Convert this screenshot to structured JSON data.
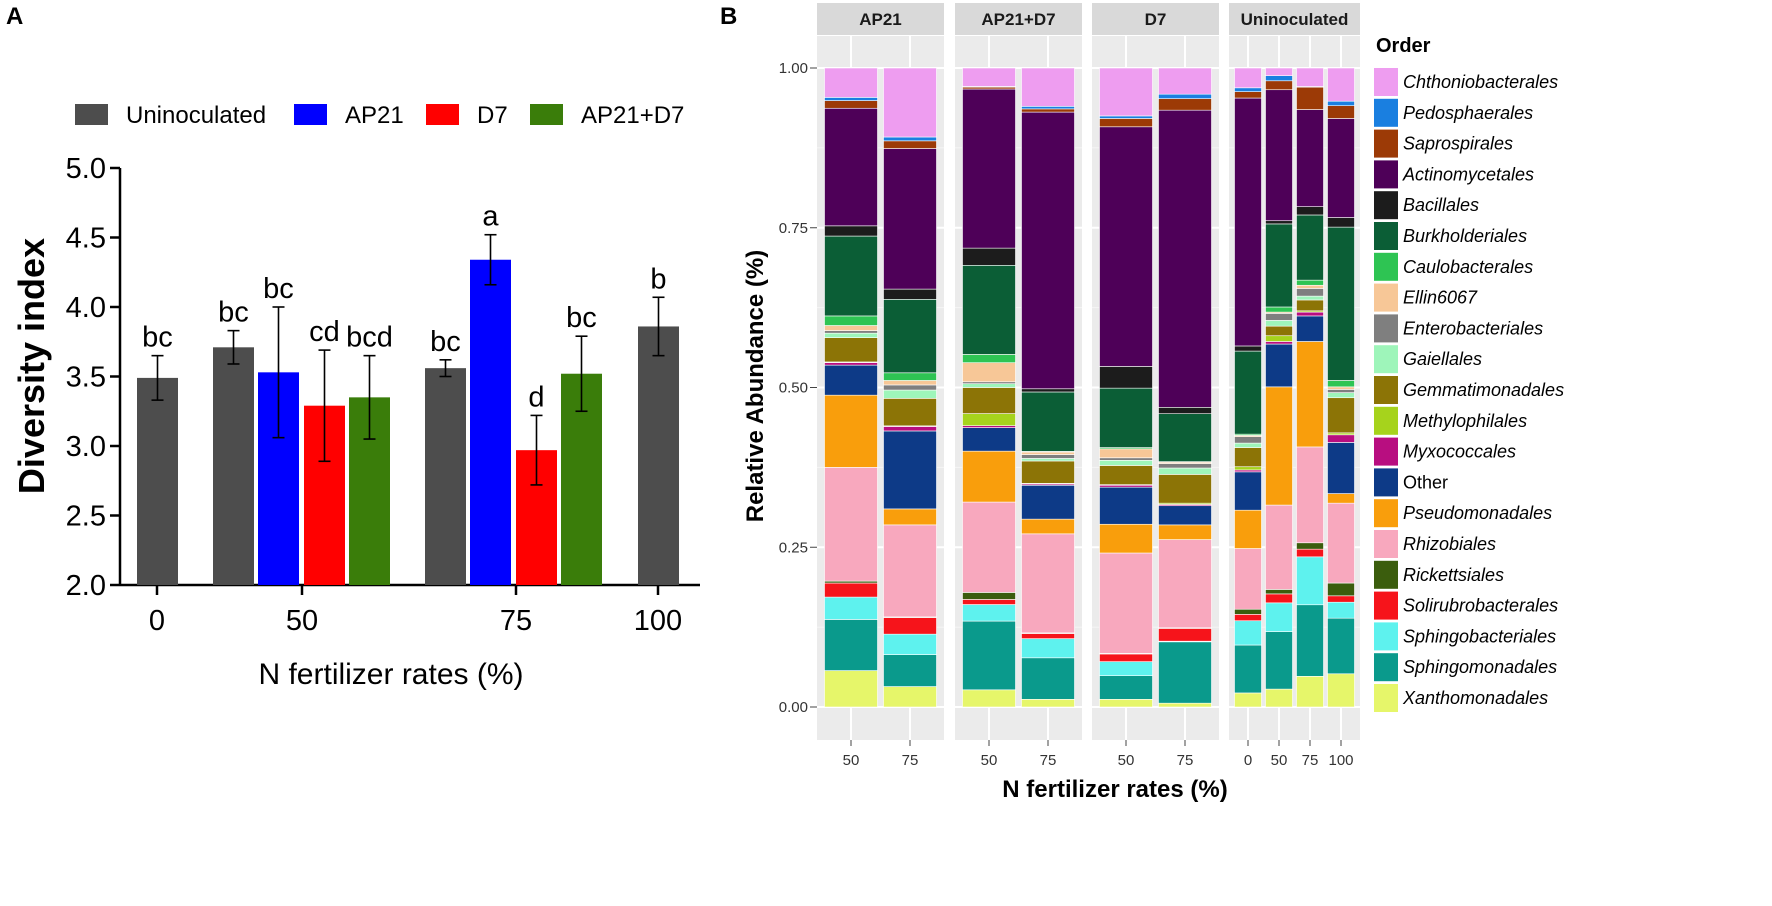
{
  "chart_data": [
    {
      "panel": "A",
      "type": "bar",
      "xlabel": "N fertilizer rates (%)",
      "ylabel": "Diversity index",
      "ylim": [
        2.0,
        5.0
      ],
      "yticks": [
        "2.0",
        "2.5",
        "3.0",
        "3.5",
        "4.0",
        "4.5",
        "5.0"
      ],
      "categories": [
        "0",
        "50",
        "75",
        "100"
      ],
      "legend": [
        {
          "name": "Uninoculated",
          "color": "#4d4d4d"
        },
        {
          "name": "AP21",
          "color": "#0000ff"
        },
        {
          "name": "D7",
          "color": "#ff0000"
        },
        {
          "name": "AP21+D7",
          "color": "#3a7d0a"
        }
      ],
      "bars": [
        {
          "category": "0",
          "series": "Uninoculated",
          "value": 3.49,
          "err": 0.16,
          "label": "bc"
        },
        {
          "category": "50",
          "series": "Uninoculated",
          "value": 3.71,
          "err": 0.12,
          "label": "bc"
        },
        {
          "category": "50",
          "series": "AP21",
          "value": 3.53,
          "err": 0.47,
          "label": "bc"
        },
        {
          "category": "50",
          "series": "D7",
          "value": 3.29,
          "err": 0.4,
          "label": "cd"
        },
        {
          "category": "50",
          "series": "AP21+D7",
          "value": 3.35,
          "err": 0.3,
          "label": "bcd"
        },
        {
          "category": "75",
          "series": "Uninoculated",
          "value": 3.56,
          "err": 0.06,
          "label": "bc"
        },
        {
          "category": "75",
          "series": "AP21",
          "value": 4.34,
          "err": 0.18,
          "label": "a"
        },
        {
          "category": "75",
          "series": "D7",
          "value": 2.97,
          "err": 0.25,
          "label": "d"
        },
        {
          "category": "75",
          "series": "AP21+D7",
          "value": 3.52,
          "err": 0.27,
          "label": "bc"
        },
        {
          "category": "100",
          "series": "Uninoculated",
          "value": 3.86,
          "err": 0.21,
          "label": "b"
        }
      ]
    },
    {
      "panel": "B",
      "type": "bar",
      "stacked": true,
      "xlabel": "N fertilizer rates (%)",
      "ylabel": "Relative Abundance (%)",
      "ylim": [
        0,
        1
      ],
      "yticks": [
        "0.00",
        "0.25",
        "0.50",
        "0.75",
        "1.00"
      ],
      "legend_title": "Order",
      "orders": [
        {
          "name": "Chthoniobacterales",
          "color": "#ee9df0"
        },
        {
          "name": "Pedosphaerales",
          "color": "#1a7fe0"
        },
        {
          "name": "Saprospirales",
          "color": "#9c3a06"
        },
        {
          "name": "Actinomycetales",
          "color": "#4e0058"
        },
        {
          "name": "Bacillales",
          "color": "#1c1c1c"
        },
        {
          "name": "Burkholderiales",
          "color": "#0b5e36"
        },
        {
          "name": "Caulobacterales",
          "color": "#2ec453"
        },
        {
          "name": "Ellin6067",
          "color": "#f7c797"
        },
        {
          "name": "Enterobacteriales",
          "color": "#7f7f7f"
        },
        {
          "name": "Gaiellales",
          "color": "#9ef5ba"
        },
        {
          "name": "Gemmatimonadales",
          "color": "#8c7406"
        },
        {
          "name": "Methylophilales",
          "color": "#a6d31c"
        },
        {
          "name": "Myxococcales",
          "color": "#b80e80"
        },
        {
          "name": "Other",
          "color": "#0d3a87",
          "plain": true
        },
        {
          "name": "Pseudomonadales",
          "color": "#f99e0c"
        },
        {
          "name": "Rhizobiales",
          "color": "#f8a8be"
        },
        {
          "name": "Rickettsiales",
          "color": "#3b5d0d"
        },
        {
          "name": "Solirubrobacterales",
          "color": "#f6141b"
        },
        {
          "name": "Sphingobacteriales",
          "color": "#5ef2ee"
        },
        {
          "name": "Sphingomonadales",
          "color": "#0a9a8c"
        },
        {
          "name": "Xanthomonadales",
          "color": "#e6f66a"
        }
      ],
      "facets": [
        {
          "name": "AP21",
          "bars": [
            {
              "x": "50",
              "values": {
                "Xanthomonadales": 0.057,
                "Sphingomonadales": 0.08,
                "Sphingobacteriales": 0.035,
                "Solirubrobacterales": 0.022,
                "Rickettsiales": 0.003,
                "Rhizobiales": 0.178,
                "Pseudomonadales": 0.113,
                "Other": 0.047,
                "Myxococcales": 0.004,
                "Methylophilales": 0.001,
                "Gemmatimonadales": 0.038,
                "Gaiellales": 0.007,
                "Enterobacteriales": 0.004,
                "Ellin6067": 0.008,
                "Caulobacterales": 0.015,
                "Burkholderiales": 0.125,
                "Bacillales": 0.016,
                "Actinomycetales": 0.184,
                "Saprospirales": 0.012,
                "Pedosphaerales": 0.005,
                "Chthoniobacterales": 0.046
              }
            },
            {
              "x": "75",
              "values": {
                "Xanthomonadales": 0.032,
                "Sphingomonadales": 0.05,
                "Sphingobacteriales": 0.032,
                "Solirubrobacterales": 0.026,
                "Rickettsiales": 0.001,
                "Rhizobiales": 0.144,
                "Pseudomonadales": 0.025,
                "Other": 0.122,
                "Myxococcales": 0.007,
                "Methylophilales": 0.001,
                "Gemmatimonadales": 0.043,
                "Gaiellales": 0.013,
                "Enterobacteriales": 0.008,
                "Ellin6067": 0.007,
                "Caulobacterales": 0.012,
                "Burkholderiales": 0.115,
                "Bacillales": 0.016,
                "Actinomycetales": 0.22,
                "Saprospirales": 0.012,
                "Pedosphaerales": 0.006,
                "Chthoniobacterales": 0.108
              }
            }
          ]
        },
        {
          "name": "AP21+D7",
          "bars": [
            {
              "x": "50",
              "values": {
                "Xanthomonadales": 0.027,
                "Sphingomonadales": 0.108,
                "Sphingobacteriales": 0.026,
                "Solirubrobacterales": 0.008,
                "Rickettsiales": 0.011,
                "Rhizobiales": 0.142,
                "Pseudomonadales": 0.08,
                "Other": 0.037,
                "Myxococcales": 0.003,
                "Methylophilales": 0.019,
                "Gemmatimonadales": 0.041,
                "Gaiellales": 0.006,
                "Enterobacteriales": 0.003,
                "Ellin6067": 0.03,
                "Caulobacterales": 0.013,
                "Burkholderiales": 0.14,
                "Bacillales": 0.027,
                "Actinomycetales": 0.25,
                "Saprospirales": 0.003,
                "Pedosphaerales": 0.001,
                "Chthoniobacterales": 0.029
              }
            },
            {
              "x": "75",
              "values": {
                "Xanthomonadales": 0.012,
                "Sphingomonadales": 0.065,
                "Sphingobacteriales": 0.03,
                "Solirubrobacterales": 0.008,
                "Rickettsiales": 0.001,
                "Rhizobiales": 0.155,
                "Pseudomonadales": 0.023,
                "Other": 0.053,
                "Myxococcales": 0.002,
                "Methylophilales": 0.001,
                "Gemmatimonadales": 0.035,
                "Gaiellales": 0.004,
                "Enterobacteriales": 0.006,
                "Ellin6067": 0.004,
                "Caulobacterales": 0.001,
                "Burkholderiales": 0.093,
                "Bacillales": 0.005,
                "Actinomycetales": 0.433,
                "Saprospirales": 0.005,
                "Pedosphaerales": 0.004,
                "Chthoniobacterales": 0.06
              }
            }
          ]
        },
        {
          "name": "D7",
          "bars": [
            {
              "x": "50",
              "values": {
                "Xanthomonadales": 0.012,
                "Sphingomonadales": 0.037,
                "Sphingobacteriales": 0.022,
                "Solirubrobacterales": 0.012,
                "Rickettsiales": 0.001,
                "Rhizobiales": 0.157,
                "Pseudomonadales": 0.045,
                "Other": 0.058,
                "Myxococcales": 0.003,
                "Methylophilales": 0.001,
                "Gemmatimonadales": 0.03,
                "Gaiellales": 0.008,
                "Enterobacteriales": 0.004,
                "Ellin6067": 0.014,
                "Caulobacterales": 0.002,
                "Burkholderiales": 0.093,
                "Bacillales": 0.034,
                "Actinomycetales": 0.375,
                "Saprospirales": 0.013,
                "Pedosphaerales": 0.004,
                "Chthoniobacterales": 0.075
              }
            },
            {
              "x": "75",
              "values": {
                "Xanthomonadales": 0.006,
                "Sphingomonadales": 0.096,
                "Sphingobacteriales": 0.001,
                "Solirubrobacterales": 0.02,
                "Rickettsiales": 0.001,
                "Rhizobiales": 0.138,
                "Pseudomonadales": 0.023,
                "Other": 0.03,
                "Myxococcales": 0.002,
                "Methylophilales": 0.002,
                "Gemmatimonadales": 0.045,
                "Gaiellales": 0.01,
                "Enterobacteriales": 0.007,
                "Ellin6067": 0.002,
                "Caulobacterales": 0.001,
                "Burkholderiales": 0.075,
                "Bacillales": 0.01,
                "Actinomycetales": 0.465,
                "Saprospirales": 0.018,
                "Pedosphaerales": 0.007,
                "Chthoniobacterales": 0.041
              }
            }
          ]
        },
        {
          "name": "Uninoculated",
          "bars": [
            {
              "x": "0",
              "values": {
                "Xanthomonadales": 0.022,
                "Sphingomonadales": 0.075,
                "Sphingobacteriales": 0.038,
                "Solirubrobacterales": 0.01,
                "Rickettsiales": 0.008,
                "Rhizobiales": 0.095,
                "Pseudomonadales": 0.06,
                "Other": 0.06,
                "Myxococcales": 0.003,
                "Methylophilales": 0.005,
                "Gemmatimonadales": 0.03,
                "Gaiellales": 0.007,
                "Enterobacteriales": 0.01,
                "Ellin6067": 0.002,
                "Caulobacterales": 0.002,
                "Burkholderiales": 0.13,
                "Bacillales": 0.008,
                "Actinomycetales": 0.388,
                "Saprospirales": 0.01,
                "Pedosphaerales": 0.006,
                "Chthoniobacterales": 0.031
              }
            },
            {
              "x": "50",
              "values": {
                "Xanthomonadales": 0.028,
                "Sphingomonadales": 0.09,
                "Sphingobacteriales": 0.045,
                "Solirubrobacterales": 0.014,
                "Rickettsiales": 0.007,
                "Rhizobiales": 0.132,
                "Pseudomonadales": 0.185,
                "Other": 0.067,
                "Myxococcales": 0.004,
                "Methylophilales": 0.009,
                "Gemmatimonadales": 0.015,
                "Gaiellales": 0.009,
                "Enterobacteriales": 0.011,
                "Ellin6067": 0.002,
                "Caulobacterales": 0.008,
                "Burkholderiales": 0.13,
                "Bacillales": 0.005,
                "Actinomycetales": 0.205,
                "Saprospirales": 0.014,
                "Pedosphaerales": 0.008,
                "Chthoniobacterales": 0.012
              }
            },
            {
              "x": "75",
              "values": {
                "Xanthomonadales": 0.048,
                "Sphingomonadales": 0.112,
                "Sphingobacteriales": 0.075,
                "Solirubrobacterales": 0.012,
                "Rickettsiales": 0.01,
                "Rhizobiales": 0.15,
                "Pseudomonadales": 0.165,
                "Other": 0.04,
                "Myxococcales": 0.006,
                "Methylophilales": 0.002,
                "Gemmatimonadales": 0.017,
                "Gaiellales": 0.006,
                "Enterobacteriales": 0.012,
                "Ellin6067": 0.005,
                "Caulobacterales": 0.008,
                "Burkholderiales": 0.102,
                "Bacillales": 0.013,
                "Actinomycetales": 0.152,
                "Saprospirales": 0.035,
                "Pedosphaerales": 0.001,
                "Chthoniobacterales": 0.029
              }
            },
            {
              "x": "100",
              "values": {
                "Xanthomonadales": 0.052,
                "Sphingomonadales": 0.087,
                "Sphingobacteriales": 0.025,
                "Solirubrobacterales": 0.01,
                "Rickettsiales": 0.02,
                "Rhizobiales": 0.125,
                "Pseudomonadales": 0.015,
                "Other": 0.08,
                "Myxococcales": 0.012,
                "Methylophilales": 0.003,
                "Gemmatimonadales": 0.055,
                "Gaiellales": 0.008,
                "Enterobacteriales": 0.005,
                "Ellin6067": 0.004,
                "Caulobacterales": 0.01,
                "Burkholderiales": 0.24,
                "Bacillales": 0.015,
                "Actinomycetales": 0.155,
                "Saprospirales": 0.02,
                "Pedosphaerales": 0.007,
                "Chthoniobacterales": 0.052
              }
            }
          ]
        }
      ]
    }
  ],
  "labels": {
    "panelA": "A",
    "panelB": "B"
  }
}
